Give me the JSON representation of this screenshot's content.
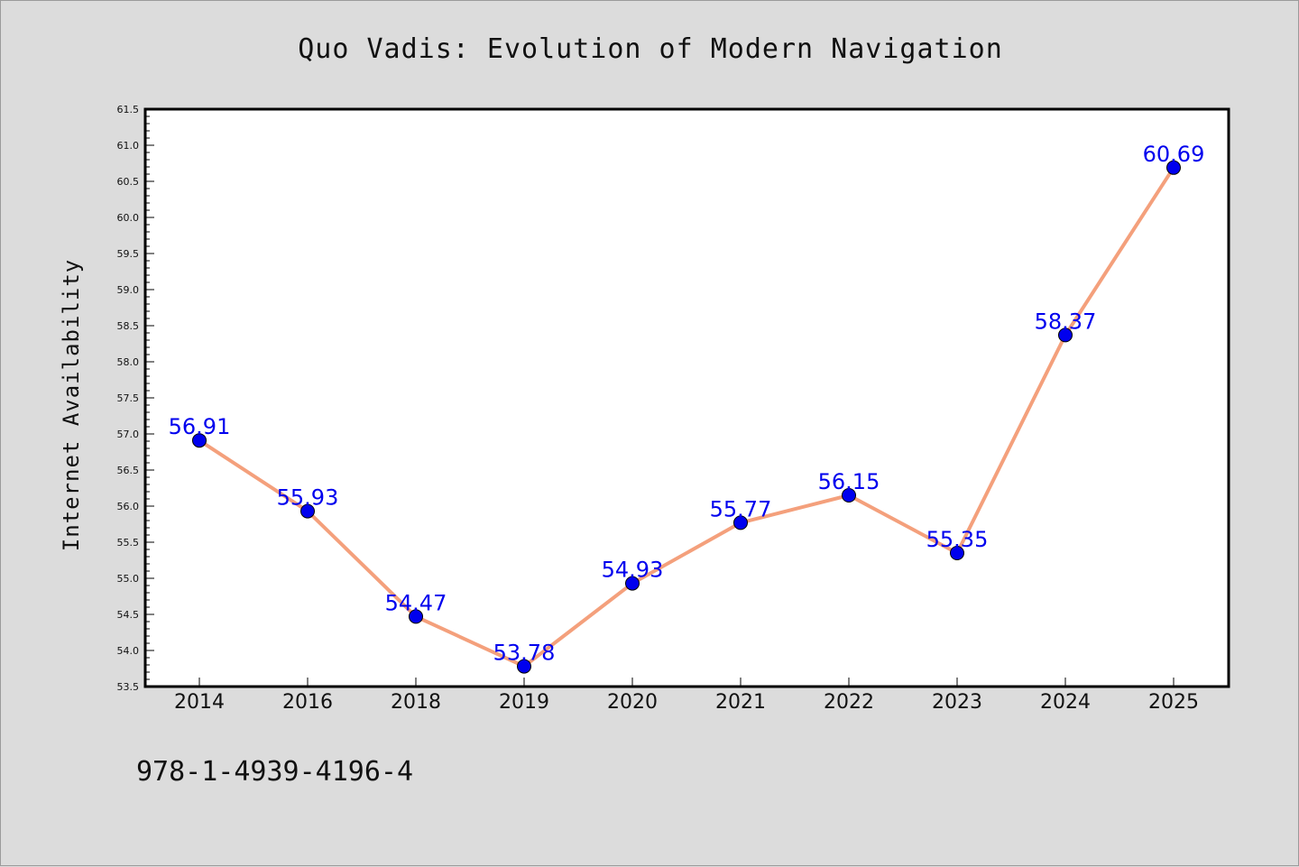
{
  "chart_data": {
    "type": "line",
    "title": "Quo Vadis: Evolution of Modern Navigation",
    "xlabel": "",
    "ylabel": "Internet Availability",
    "categories": [
      "2014",
      "2016",
      "2018",
      "2019",
      "2020",
      "2021",
      "2022",
      "2023",
      "2024",
      "2025"
    ],
    "series": [
      {
        "values": [
          56.91,
          55.93,
          54.47,
          53.78,
          54.93,
          55.77,
          56.15,
          55.35,
          58.37,
          60.69
        ]
      }
    ],
    "data_labels": [
      "56.91",
      "55.93",
      "54.47",
      "53.78",
      "54.93",
      "55.77",
      "56.15",
      "55.35",
      "58.37",
      "60.69"
    ],
    "ylim": [
      53.5,
      61.5
    ],
    "yticks": [
      53.5,
      54.0,
      54.5,
      55.0,
      55.5,
      56.0,
      56.5,
      57.0,
      57.5,
      58.0,
      58.5,
      59.0,
      59.5,
      60.0,
      60.5,
      61.0,
      61.5
    ],
    "ytick_labels": [
      "53.5",
      "54.0",
      "54.5",
      "55.0",
      "55.5",
      "56.0",
      "56.5",
      "57.0",
      "57.5",
      "58.0",
      "58.5",
      "59.0",
      "59.5",
      "60.0",
      "60.5",
      "61.0",
      "61.5"
    ],
    "grid": false,
    "legend": "none"
  },
  "footer_text": "978-1-4939-4196-4",
  "colors": {
    "line": "#f4a07c",
    "marker": "#0000ee",
    "data_label": "#0000ee",
    "background": "#dcdcdc",
    "plot_area": "#ffffff"
  }
}
